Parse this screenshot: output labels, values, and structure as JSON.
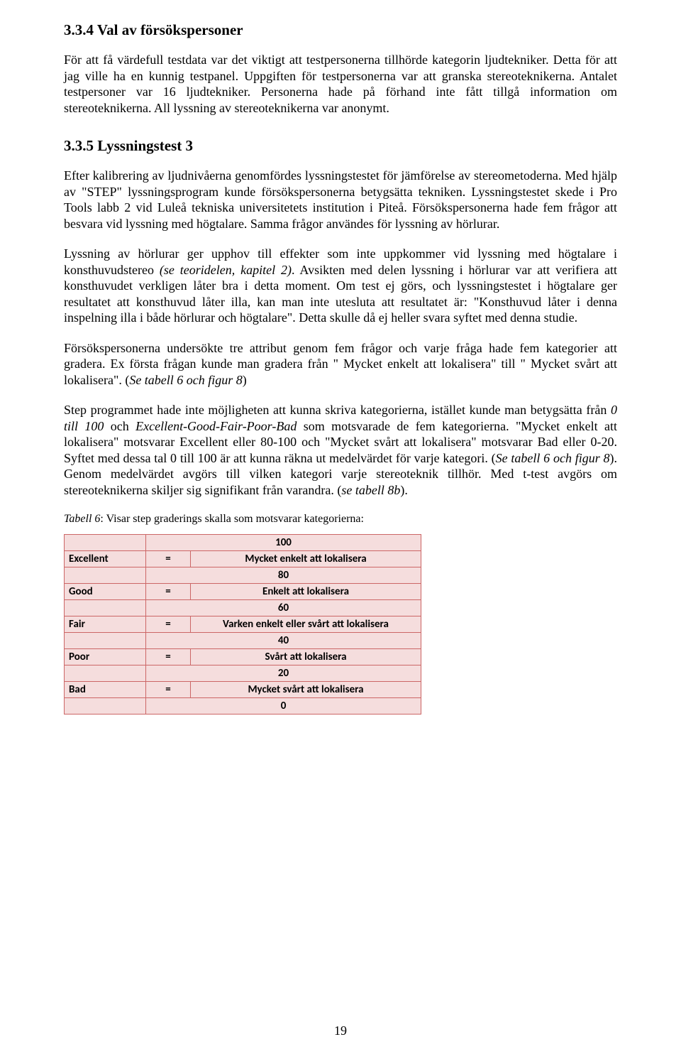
{
  "heading_334": "3.3.4  Val av försökspersoner",
  "para_334": "För att få värdefull testdata var det viktigt att testpersonerna tillhörde kategorin ljudtekniker. Detta för att jag ville ha en kunnig testpanel. Uppgiften för testpersonerna var att granska stereoteknikerna. Antalet testpersoner var 16 ljudtekniker. Personerna hade på förhand inte fått tillgå information om stereoteknikerna. All lyssning av stereoteknikerna var anonymt.",
  "heading_335": "3.3.5  Lyssningstest 3",
  "para_335_1": "Efter kalibrering av ljudnivåerna genomfördes lyssningstestet för jämförelse av stereometoderna. Med hjälp av \"STEP\" lyssningsprogram kunde försökspersonerna betygsätta tekniken. Lyssningstestet skede i Pro Tools labb 2 vid Luleå tekniska universitetets institution i Piteå. Försökspersonerna hade fem frågor att besvara vid lyssning med högtalare. Samma frågor användes för lyssning av hörlurar.",
  "para_335_2_a": " Lyssning av hörlurar ger upphov till effekter som inte uppkommer vid lyssning med högtalare i konsthuvudstereo ",
  "para_335_2_it": "(se teoridelen, kapitel 2)",
  "para_335_2_b": ". Avsikten med delen lyssning i hörlurar var att verifiera att konsthuvudet verkligen låter bra i detta moment. Om test ej görs, och lyssningstestet i högtalare ger resultatet att konsthuvud låter illa, kan man inte utesluta att resultatet är: \"Konsthuvud låter i denna inspelning illa i både hörlurar och högtalare\". Detta skulle då ej heller svara syftet med denna studie.",
  "para_335_3_a": "Försökspersonerna undersökte tre attribut genom fem frågor och varje fråga hade fem kategorier att gradera. Ex första frågan kunde man gradera från \" Mycket enkelt att lokalisera\" till \" Mycket svårt att lokalisera\". (",
  "para_335_3_it": "Se tabell 6 och figur 8",
  "para_335_3_b": ")",
  "para_335_4_a": "Step programmet hade inte möjligheten att kunna skriva kategorierna, istället kunde man betygsätta från ",
  "para_335_4_it1": "0 till 100",
  "para_335_4_b": " och ",
  "para_335_4_it2": "Excellent-Good-Fair-Poor-Bad",
  "para_335_4_c": " som motsvarade de fem kategorierna.  \"Mycket enkelt att lokalisera\" motsvarar Excellent eller 80-100 och \"Mycket svårt att lokalisera\" motsvarar Bad eller 0-20.  Syftet med dessa tal 0 till 100 är att kunna räkna ut medelvärdet för varje kategori. (",
  "para_335_4_it3": "Se tabell 6 och figur 8",
  "para_335_4_d": "). Genom medelvärdet avgörs till vilken kategori varje stereoteknik tillhör. Med t-test avgörs om stereoteknikerna skiljer sig signifikant från varandra. (",
  "para_335_4_it4": "se tabell 8b",
  "para_335_4_e": ").",
  "caption_a": "Tabell 6",
  "caption_b": ": Visar step graderings skalla som motsvarar kategorierna:",
  "table": {
    "border_color": "#cc6666",
    "bg_color": "#f5dddd",
    "col1_width": 78,
    "col2_width": 50,
    "col3_width": 300,
    "rows": [
      {
        "type": "num",
        "value": "100"
      },
      {
        "type": "cat",
        "label": "Excellent",
        "eq": "=",
        "desc": "Mycket enkelt att lokalisera"
      },
      {
        "type": "num",
        "value": "80"
      },
      {
        "type": "cat",
        "label": "Good",
        "eq": "=",
        "desc": "Enkelt att lokalisera"
      },
      {
        "type": "num",
        "value": "60"
      },
      {
        "type": "cat",
        "label": "Fair",
        "eq": "=",
        "desc": "Varken enkelt eller svårt att lokalisera"
      },
      {
        "type": "num",
        "value": "40"
      },
      {
        "type": "cat",
        "label": "Poor",
        "eq": "=",
        "desc": "Svårt att lokalisera"
      },
      {
        "type": "num",
        "value": "20"
      },
      {
        "type": "cat",
        "label": "Bad",
        "eq": "=",
        "desc": "Mycket svårt att lokalisera"
      },
      {
        "type": "num",
        "value": "0"
      }
    ]
  },
  "page_number": "19"
}
